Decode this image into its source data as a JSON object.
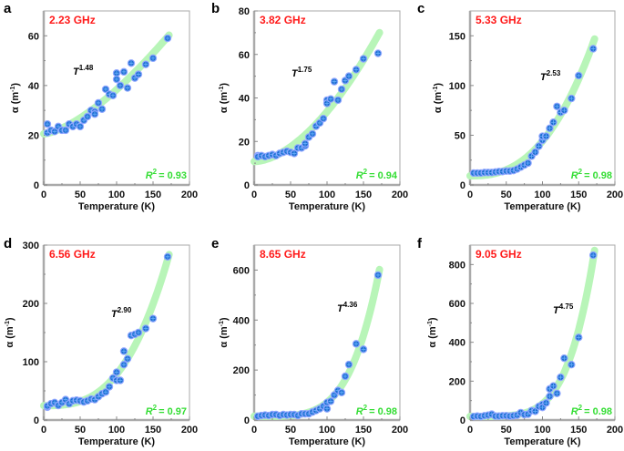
{
  "colors": {
    "frequency_label": "#ff1a1a",
    "r2_label": "#33dd33",
    "fit_band": "#b8f5b8",
    "marker": "#1e6fd0",
    "marker_edge": "#8fa6ff"
  },
  "chart_data": [
    {
      "type": "scatter",
      "panel": "a",
      "frequency": "2.23 GHz",
      "fit_label_base": "T",
      "fit_exponent": "1.48",
      "r2_label": "R",
      "r2_value": "= 0.93",
      "xlabel": "Temperature (K)",
      "ylabel": "α (m",
      "ylabel_sup": "-1",
      "ylabel_end": ")",
      "xlim": [
        0,
        200
      ],
      "ylim": [
        0,
        70
      ],
      "xticks": [
        "0",
        "50",
        "100",
        "150",
        "200"
      ],
      "yticks": [
        "0",
        "20",
        "40",
        "60"
      ],
      "grid": false,
      "fit_type": "power-law",
      "x": [
        5,
        5,
        10,
        15,
        20,
        25,
        30,
        35,
        40,
        45,
        50,
        55,
        60,
        65,
        70,
        70,
        75,
        80,
        85,
        90,
        95,
        100,
        100,
        105,
        110,
        115,
        120,
        125,
        130,
        140,
        150,
        170
      ],
      "y": [
        24.5,
        21,
        22,
        21.5,
        23.5,
        22,
        22,
        24.5,
        23.5,
        24.5,
        23.5,
        26,
        27.5,
        30,
        29.5,
        28.5,
        33,
        30.5,
        38.5,
        36.5,
        36,
        45,
        42.5,
        40,
        45.5,
        39,
        49,
        43,
        44.5,
        48.5,
        51,
        59
      ]
    },
    {
      "type": "scatter",
      "panel": "b",
      "frequency": "3.82 GHz",
      "fit_label_base": "T",
      "fit_exponent": "1.75",
      "r2_label": "R",
      "r2_value": "= 0.94",
      "xlabel": "Temperature (K)",
      "ylabel": "α (m",
      "ylabel_sup": "-1",
      "ylabel_end": ")",
      "xlim": [
        0,
        200
      ],
      "ylim": [
        0,
        80
      ],
      "xticks": [
        "0",
        "50",
        "100",
        "150",
        "200"
      ],
      "yticks": [
        "0",
        "20",
        "40",
        "60",
        "80"
      ],
      "grid": false,
      "fit_type": "power-law",
      "x": [
        5,
        5,
        10,
        15,
        20,
        25,
        30,
        35,
        40,
        45,
        50,
        55,
        60,
        65,
        70,
        70,
        75,
        80,
        85,
        90,
        95,
        100,
        100,
        105,
        110,
        115,
        120,
        125,
        130,
        140,
        150,
        170
      ],
      "y": [
        13.5,
        13,
        13.5,
        13,
        13.5,
        14,
        13.5,
        14.5,
        15,
        15.5,
        15,
        14.5,
        17,
        17,
        18,
        19,
        22,
        23.5,
        27,
        28.5,
        30.5,
        39,
        37.5,
        39.5,
        47.5,
        39,
        44,
        48,
        50,
        53,
        58,
        60.5
      ]
    },
    {
      "type": "scatter",
      "panel": "c",
      "frequency": "5.33 GHz",
      "fit_label_base": "T",
      "fit_exponent": "2.53",
      "r2_label": "R",
      "r2_value": "= 0.98",
      "xlabel": "Temperature (K)",
      "ylabel": "α (m",
      "ylabel_sup": "-1",
      "ylabel_end": ")",
      "xlim": [
        0,
        200
      ],
      "ylim": [
        0,
        175
      ],
      "xticks": [
        "0",
        "50",
        "100",
        "150",
        "200"
      ],
      "yticks": [
        "0",
        "50",
        "100",
        "150"
      ],
      "grid": false,
      "fit_type": "power-law",
      "x": [
        5,
        10,
        15,
        20,
        25,
        30,
        35,
        40,
        45,
        50,
        55,
        60,
        65,
        70,
        75,
        80,
        85,
        90,
        95,
        100,
        100,
        105,
        110,
        115,
        120,
        125,
        130,
        140,
        150,
        170
      ],
      "y": [
        12,
        12,
        12,
        12.5,
        12.5,
        12.5,
        13,
        13.5,
        13.5,
        14,
        14,
        14.5,
        16,
        18,
        20,
        22,
        29,
        33,
        39,
        45,
        49,
        49,
        57,
        63,
        79,
        73,
        75,
        87,
        110,
        137
      ]
    },
    {
      "type": "scatter",
      "panel": "d",
      "frequency": "6.56 GHz",
      "fit_label_base": "T",
      "fit_exponent": "2.90",
      "r2_label": "R",
      "r2_value": "= 0.97",
      "xlabel": "Temperature (K)",
      "ylabel": "α (m",
      "ylabel_sup": "-1",
      "ylabel_end": ")",
      "xlim": [
        0,
        200
      ],
      "ylim": [
        0,
        300
      ],
      "xticks": [
        "0",
        "50",
        "100",
        "150",
        "200"
      ],
      "yticks": [
        "0",
        "100",
        "200",
        "300"
      ],
      "grid": false,
      "fit_type": "power-law",
      "x": [
        5,
        5,
        10,
        15,
        20,
        25,
        30,
        35,
        40,
        45,
        50,
        55,
        60,
        65,
        70,
        75,
        80,
        85,
        90,
        95,
        100,
        100,
        105,
        110,
        110,
        115,
        120,
        125,
        130,
        140,
        150,
        170
      ],
      "y": [
        22,
        24,
        28,
        30,
        25,
        30,
        35,
        28,
        33,
        34,
        33,
        31,
        33,
        36,
        35,
        40,
        45,
        48,
        57,
        72,
        82,
        68,
        68,
        95,
        118,
        105,
        145,
        147,
        150,
        157,
        174,
        280
      ]
    },
    {
      "type": "scatter",
      "panel": "e",
      "frequency": "8.65 GHz",
      "fit_label_base": "T",
      "fit_exponent": "4.36",
      "r2_label": "R",
      "r2_value": "= 0.98",
      "xlabel": "Temperature (K)",
      "ylabel": "α (m",
      "ylabel_sup": "-1",
      "ylabel_end": ")",
      "xlim": [
        0,
        200
      ],
      "ylim": [
        0,
        700
      ],
      "xticks": [
        "0",
        "50",
        "100",
        "150",
        "200"
      ],
      "yticks": [
        "0",
        "200",
        "400",
        "600"
      ],
      "grid": false,
      "fit_type": "power-law",
      "x": [
        5,
        10,
        15,
        20,
        25,
        30,
        35,
        40,
        45,
        50,
        55,
        60,
        65,
        70,
        75,
        80,
        85,
        90,
        95,
        100,
        100,
        105,
        110,
        115,
        120,
        125,
        130,
        140,
        150,
        170
      ],
      "y": [
        15,
        18,
        20,
        18,
        22,
        22,
        18,
        22,
        20,
        22,
        22,
        18,
        25,
        25,
        25,
        32,
        38,
        45,
        55,
        45,
        70,
        75,
        100,
        118,
        110,
        175,
        222,
        305,
        283,
        580
      ]
    },
    {
      "type": "scatter",
      "panel": "f",
      "frequency": "9.05 GHz",
      "fit_label_base": "T",
      "fit_exponent": "4.75",
      "r2_label": "R",
      "r2_value": "= 0.98",
      "xlabel": "Temperature (K)",
      "ylabel": "α (m",
      "ylabel_sup": "-1",
      "ylabel_end": ")",
      "xlim": [
        0,
        200
      ],
      "ylim": [
        0,
        900
      ],
      "xticks": [
        "0",
        "50",
        "100",
        "150",
        "200"
      ],
      "yticks": [
        "0",
        "200",
        "400",
        "600",
        "800"
      ],
      "grid": false,
      "fit_type": "power-law",
      "x": [
        5,
        10,
        15,
        20,
        25,
        30,
        35,
        40,
        45,
        50,
        55,
        60,
        65,
        70,
        75,
        80,
        85,
        90,
        95,
        100,
        100,
        105,
        110,
        110,
        115,
        120,
        125,
        130,
        140,
        150,
        170
      ],
      "y": [
        18,
        20,
        18,
        22,
        25,
        30,
        20,
        20,
        22,
        22,
        20,
        22,
        25,
        38,
        28,
        30,
        48,
        45,
        70,
        80,
        65,
        88,
        160,
        122,
        175,
        137,
        220,
        318,
        285,
        425,
        848
      ]
    }
  ]
}
